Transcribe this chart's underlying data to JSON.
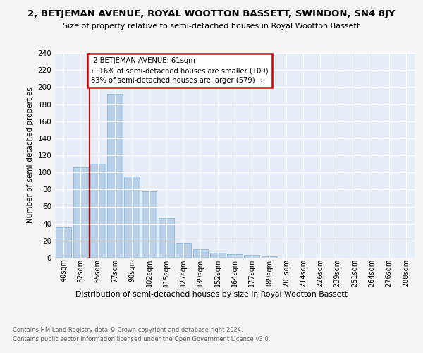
{
  "title": "2, BETJEMAN AVENUE, ROYAL WOOTTON BASSETT, SWINDON, SN4 8JY",
  "subtitle": "Size of property relative to semi-detached houses in Royal Wootton Bassett",
  "xlabel": "Distribution of semi-detached houses by size in Royal Wootton Bassett",
  "ylabel": "Number of semi-detached properties",
  "bar_labels": [
    "40sqm",
    "52sqm",
    "65sqm",
    "77sqm",
    "90sqm",
    "102sqm",
    "115sqm",
    "127sqm",
    "139sqm",
    "152sqm",
    "164sqm",
    "177sqm",
    "189sqm",
    "201sqm",
    "214sqm",
    "226sqm",
    "239sqm",
    "251sqm",
    "264sqm",
    "276sqm",
    "288sqm"
  ],
  "bar_values": [
    36,
    106,
    110,
    192,
    95,
    78,
    46,
    17,
    10,
    6,
    4,
    3,
    2,
    0,
    0,
    0,
    0,
    0,
    0,
    0,
    0
  ],
  "bar_color": "#b8d0e8",
  "bar_edge_color": "#7aafd4",
  "property_sqm": 61,
  "pct_smaller": 16,
  "count_smaller": 109,
  "pct_larger": 83,
  "count_larger": 579,
  "annotation_label": "2 BETJEMAN AVENUE: 61sqm",
  "annotation_line_color": "#cc0000",
  "annotation_box_edge_color": "#cc0000",
  "ylim": [
    0,
    240
  ],
  "yticks": [
    0,
    20,
    40,
    60,
    80,
    100,
    120,
    140,
    160,
    180,
    200,
    220,
    240
  ],
  "background_color": "#e8eef8",
  "grid_color": "#ffffff",
  "fig_background": "#f4f4f4",
  "footer_line1": "Contains HM Land Registry data © Crown copyright and database right 2024.",
  "footer_line2": "Contains public sector information licensed under the Open Government Licence v3.0."
}
